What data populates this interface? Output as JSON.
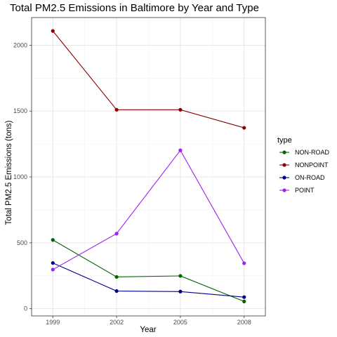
{
  "chart_data": {
    "type": "line",
    "title": "Total PM2.5 Emissions in Baltimore by Year and Type",
    "xlabel": "Year",
    "ylabel": "Total PM2.5 Emissions (tons)",
    "x": [
      1999,
      2002,
      2005,
      2008
    ],
    "x_tick_labels": [
      "1999",
      "2002",
      "2005",
      "2008"
    ],
    "y_ticks": [
      0,
      500,
      1000,
      1500,
      2000
    ],
    "y_tick_labels": [
      "0",
      "500",
      "1000",
      "1500",
      "2000"
    ],
    "ylim": [
      -55,
      2210
    ],
    "xlim": [
      1998,
      2009
    ],
    "grid": true,
    "legend": {
      "title": "type",
      "position": "right"
    },
    "series": [
      {
        "name": "NON-ROAD",
        "color": "#006400",
        "values": [
          522,
          241,
          249,
          55
        ]
      },
      {
        "name": "NONPOINT",
        "color": "#8b0000",
        "values": [
          2108,
          1510,
          1510,
          1373
        ]
      },
      {
        "name": "ON-ROAD",
        "color": "#00008b",
        "values": [
          347,
          134,
          130,
          88
        ]
      },
      {
        "name": "POINT",
        "color": "#a020f0",
        "values": [
          297,
          570,
          1202,
          345
        ]
      }
    ]
  }
}
